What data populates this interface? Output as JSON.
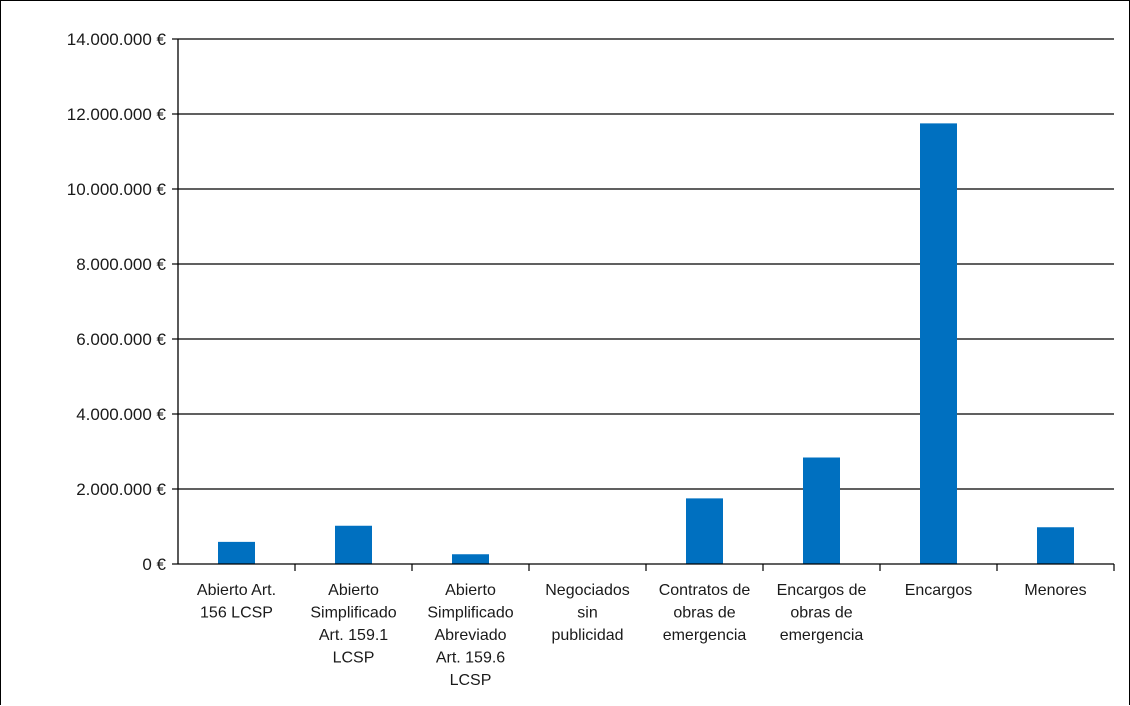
{
  "chart_data": {
    "type": "bar",
    "title": "",
    "xlabel": "",
    "ylabel": "",
    "categories": [
      [
        "Abierto Art.",
        "156 LCSP"
      ],
      [
        "Abierto",
        "Simplificado",
        "Art. 159.1",
        "LCSP"
      ],
      [
        "Abierto",
        "Simplificado",
        "Abreviado",
        "Art. 159.6",
        "LCSP"
      ],
      [
        "Negociados",
        "sin",
        "publicidad"
      ],
      [
        "Contratos de",
        "obras de",
        "emergencia"
      ],
      [
        "Encargos de",
        "obras de",
        "emergencia"
      ],
      [
        "Encargos"
      ],
      [
        "Menores"
      ]
    ],
    "values": [
      590000,
      1020000,
      260000,
      0,
      1750000,
      2840000,
      11750000,
      980000
    ],
    "ylim": [
      0,
      14000000
    ],
    "yticks": [
      0,
      2000000,
      4000000,
      6000000,
      8000000,
      10000000,
      12000000,
      14000000
    ],
    "ytick_labels": [
      "0 €",
      "2.000.000 €",
      "4.000.000 €",
      "6.000.000 €",
      "8.000.000 €",
      "10.000.000 €",
      "12.000.000 €",
      "14.000.000 €"
    ],
    "grid": true,
    "legend": "none",
    "bar_color": "#0070C0"
  }
}
